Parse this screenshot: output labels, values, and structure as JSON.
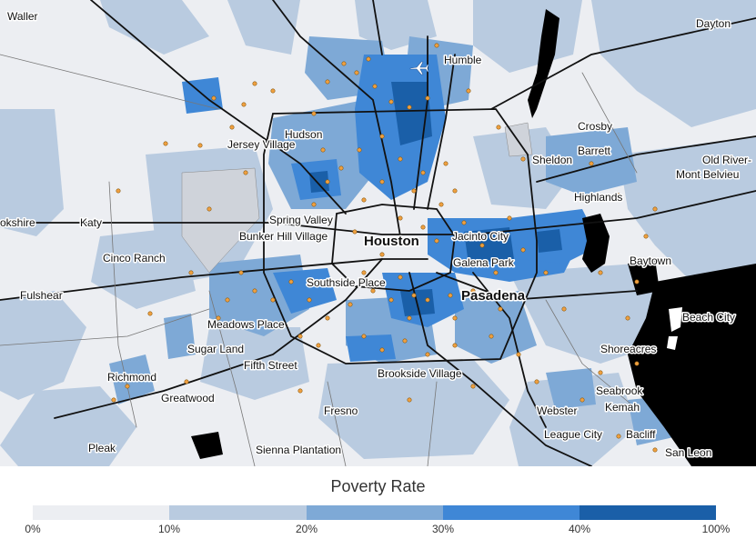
{
  "map": {
    "places": [
      {
        "id": "waller",
        "label": "Waller"
      },
      {
        "id": "dayton",
        "label": "Dayton"
      },
      {
        "id": "humble",
        "label": "Humble"
      },
      {
        "id": "hudson",
        "label": "Hudson"
      },
      {
        "id": "jersey-village",
        "label": "Jersey Village"
      },
      {
        "id": "crosby",
        "label": "Crosby"
      },
      {
        "id": "barrett",
        "label": "Barrett"
      },
      {
        "id": "sheldon",
        "label": "Sheldon"
      },
      {
        "id": "old-river",
        "label": "Old River-"
      },
      {
        "id": "mont-belvieu",
        "label": "Mont Belvieu"
      },
      {
        "id": "highlands",
        "label": "Highlands"
      },
      {
        "id": "brookshire",
        "label": "okshire"
      },
      {
        "id": "katy",
        "label": "Katy"
      },
      {
        "id": "spring-valley",
        "label": "Spring Valley"
      },
      {
        "id": "bunker-hill-village",
        "label": "Bunker Hill Village"
      },
      {
        "id": "houston",
        "label": "Houston",
        "major": true
      },
      {
        "id": "jacinto-city",
        "label": "Jacinto City"
      },
      {
        "id": "galena-park",
        "label": "Galena Park"
      },
      {
        "id": "cinco-ranch",
        "label": "Cinco Ranch"
      },
      {
        "id": "baytown",
        "label": "Baytown"
      },
      {
        "id": "southside-place",
        "label": "Southside Place"
      },
      {
        "id": "pasadena",
        "label": "Pasadena",
        "major": true
      },
      {
        "id": "fulshear",
        "label": "Fulshear"
      },
      {
        "id": "beach-city",
        "label": "Beach City"
      },
      {
        "id": "meadows-place",
        "label": "Meadows Place"
      },
      {
        "id": "sugar-land",
        "label": "Sugar Land"
      },
      {
        "id": "shoreacres",
        "label": "Shoreacres"
      },
      {
        "id": "fifth-street",
        "label": "Fifth Street"
      },
      {
        "id": "brookside-village",
        "label": "Brookside Village"
      },
      {
        "id": "richmond",
        "label": "Richmond"
      },
      {
        "id": "seabrook",
        "label": "Seabrook"
      },
      {
        "id": "greatwood",
        "label": "Greatwood"
      },
      {
        "id": "kemah",
        "label": "Kemah"
      },
      {
        "id": "webster",
        "label": "Webster"
      },
      {
        "id": "fresno",
        "label": "Fresno"
      },
      {
        "id": "league-city",
        "label": "League City"
      },
      {
        "id": "bacliff",
        "label": "Bacliff"
      },
      {
        "id": "pleak",
        "label": "Pleak"
      },
      {
        "id": "sienna-plantation",
        "label": "Sienna Plantation"
      },
      {
        "id": "san-leon",
        "label": "San Leon"
      }
    ],
    "icons": [
      "airport-icon"
    ]
  },
  "legend": {
    "title": "Poverty Rate",
    "bins": [
      {
        "color": "#eceef2"
      },
      {
        "color": "#b9cbe0"
      },
      {
        "color": "#7ea9d6"
      },
      {
        "color": "#3f87d6"
      },
      {
        "color": "#1a5fa8"
      }
    ],
    "ticks": [
      "0%",
      "10%",
      "20%",
      "30%",
      "40%",
      "100%"
    ],
    "colors": {
      "water": "#000000",
      "points": "#f0a040"
    }
  }
}
